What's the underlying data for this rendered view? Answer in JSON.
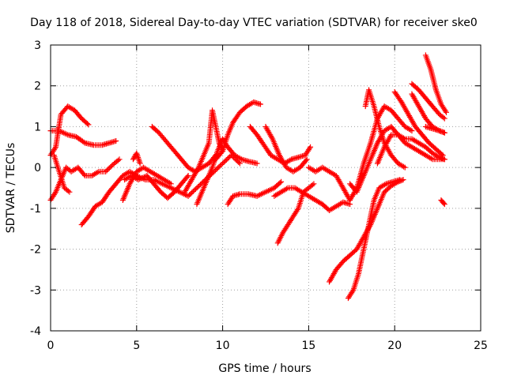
{
  "chart_data": {
    "type": "scatter",
    "title": "Day 118 of 2018, Sidereal Day-to-day VTEC variation (SDTVAR) for receiver ske0",
    "xlabel": "GPS time / hours",
    "ylabel": "SDTVAR / TECUs",
    "xlim": [
      0,
      25
    ],
    "ylim": [
      -4,
      3
    ],
    "xticks": [
      "0",
      "5",
      "10",
      "15",
      "20",
      "25"
    ],
    "yticks": [
      "-4",
      "-3",
      "-2",
      "-1",
      "0",
      "1",
      "2",
      "3"
    ],
    "grid": true,
    "marker": "+",
    "color": "#ff0000",
    "tracks": [
      [
        [
          0.0,
          -0.8
        ],
        [
          0.3,
          -0.6
        ],
        [
          0.6,
          -0.3
        ],
        [
          0.9,
          0.0
        ],
        [
          1.2,
          -0.1
        ],
        [
          1.6,
          0.0
        ],
        [
          2.0,
          -0.2
        ],
        [
          2.4,
          -0.2
        ],
        [
          2.8,
          -0.1
        ],
        [
          3.2,
          -0.1
        ],
        [
          3.7,
          0.1
        ],
        [
          4.0,
          0.2
        ]
      ],
      [
        [
          0.0,
          0.9
        ],
        [
          0.5,
          0.9
        ],
        [
          1.0,
          0.8
        ],
        [
          1.5,
          0.75
        ],
        [
          2.0,
          0.6
        ],
        [
          2.5,
          0.55
        ],
        [
          3.0,
          0.55
        ],
        [
          3.4,
          0.6
        ],
        [
          3.8,
          0.65
        ]
      ],
      [
        [
          0.0,
          0.3
        ],
        [
          0.3,
          0.5
        ],
        [
          0.6,
          1.3
        ],
        [
          1.0,
          1.5
        ],
        [
          1.4,
          1.4
        ],
        [
          1.8,
          1.2
        ],
        [
          2.2,
          1.05
        ]
      ],
      [
        [
          0.2,
          0.3
        ],
        [
          0.5,
          -0.1
        ],
        [
          0.8,
          -0.5
        ],
        [
          1.1,
          -0.6
        ]
      ],
      [
        [
          1.8,
          -1.4
        ],
        [
          2.2,
          -1.2
        ],
        [
          2.6,
          -0.95
        ],
        [
          3.0,
          -0.85
        ],
        [
          3.4,
          -0.6
        ],
        [
          3.8,
          -0.4
        ],
        [
          4.2,
          -0.2
        ],
        [
          4.6,
          -0.1
        ],
        [
          5.0,
          -0.2
        ],
        [
          5.5,
          -0.3
        ],
        [
          6.0,
          -0.3
        ],
        [
          6.5,
          -0.4
        ],
        [
          7.0,
          -0.5
        ],
        [
          7.5,
          -0.6
        ],
        [
          8.0,
          -0.7
        ],
        [
          8.5,
          -0.5
        ],
        [
          9.0,
          -0.3
        ],
        [
          9.5,
          -0.1
        ],
        [
          10.0,
          0.1
        ],
        [
          10.5,
          0.3
        ],
        [
          11.0,
          0.1
        ]
      ],
      [
        [
          4.2,
          -0.8
        ],
        [
          4.6,
          -0.4
        ],
        [
          5.0,
          -0.1
        ],
        [
          5.4,
          0.0
        ],
        [
          5.8,
          -0.1
        ],
        [
          6.2,
          -0.2
        ],
        [
          6.6,
          -0.3
        ],
        [
          7.0,
          -0.4
        ]
      ],
      [
        [
          4.3,
          -0.3
        ],
        [
          4.7,
          -0.2
        ],
        [
          5.1,
          -0.3
        ],
        [
          5.6,
          -0.2
        ],
        [
          6.0,
          -0.4
        ],
        [
          6.4,
          -0.6
        ],
        [
          6.8,
          -0.75
        ],
        [
          7.2,
          -0.6
        ],
        [
          7.6,
          -0.4
        ],
        [
          8.0,
          -0.2
        ]
      ],
      [
        [
          4.8,
          0.2
        ],
        [
          5.0,
          0.35
        ],
        [
          5.2,
          0.1
        ]
      ],
      [
        [
          5.9,
          1.0
        ],
        [
          6.3,
          0.85
        ],
        [
          6.8,
          0.6
        ],
        [
          7.2,
          0.4
        ],
        [
          7.6,
          0.2
        ],
        [
          8.0,
          0.0
        ],
        [
          8.4,
          -0.1
        ],
        [
          8.8,
          0.0
        ],
        [
          9.2,
          0.1
        ],
        [
          9.6,
          0.3
        ]
      ],
      [
        [
          7.8,
          -0.6
        ],
        [
          8.2,
          -0.3
        ],
        [
          8.6,
          0.0
        ],
        [
          8.9,
          0.3
        ],
        [
          9.2,
          0.6
        ],
        [
          9.4,
          1.4
        ],
        [
          9.6,
          1.0
        ],
        [
          9.8,
          0.6
        ],
        [
          10.0,
          0.4
        ]
      ],
      [
        [
          8.5,
          -0.9
        ],
        [
          8.8,
          -0.6
        ],
        [
          9.1,
          -0.3
        ],
        [
          9.4,
          0.0
        ],
        [
          9.7,
          0.4
        ],
        [
          10.0,
          0.7
        ],
        [
          10.3,
          0.5
        ],
        [
          10.7,
          0.3
        ],
        [
          11.1,
          0.2
        ],
        [
          11.5,
          0.15
        ],
        [
          12.0,
          0.1
        ]
      ],
      [
        [
          9.6,
          0.2
        ],
        [
          10.0,
          0.4
        ],
        [
          10.3,
          0.8
        ],
        [
          10.6,
          1.1
        ],
        [
          11.0,
          1.35
        ],
        [
          11.4,
          1.5
        ],
        [
          11.8,
          1.6
        ],
        [
          12.2,
          1.55
        ]
      ],
      [
        [
          10.3,
          -0.9
        ],
        [
          10.6,
          -0.7
        ],
        [
          11.0,
          -0.65
        ],
        [
          11.5,
          -0.65
        ],
        [
          12.0,
          -0.7
        ],
        [
          12.5,
          -0.6
        ],
        [
          13.0,
          -0.5
        ],
        [
          13.4,
          -0.35
        ]
      ],
      [
        [
          11.6,
          1.0
        ],
        [
          12.0,
          0.8
        ],
        [
          12.4,
          0.55
        ],
        [
          12.8,
          0.3
        ],
        [
          13.2,
          0.2
        ],
        [
          13.6,
          0.1
        ],
        [
          14.0,
          0.2
        ],
        [
          14.4,
          0.25
        ],
        [
          14.8,
          0.3
        ],
        [
          15.1,
          0.5
        ]
      ],
      [
        [
          12.5,
          1.0
        ],
        [
          12.9,
          0.7
        ],
        [
          13.3,
          0.3
        ],
        [
          13.7,
          0.0
        ],
        [
          14.1,
          -0.1
        ],
        [
          14.5,
          0.0
        ],
        [
          14.9,
          0.2
        ]
      ],
      [
        [
          13.0,
          -0.7
        ],
        [
          13.4,
          -0.6
        ],
        [
          13.8,
          -0.5
        ],
        [
          14.2,
          -0.5
        ],
        [
          14.6,
          -0.6
        ],
        [
          15.0,
          -0.7
        ],
        [
          15.4,
          -0.8
        ],
        [
          15.8,
          -0.9
        ],
        [
          16.2,
          -1.05
        ],
        [
          16.6,
          -0.95
        ],
        [
          17.0,
          -0.85
        ],
        [
          17.4,
          -0.9
        ]
      ],
      [
        [
          13.2,
          -1.85
        ],
        [
          13.5,
          -1.6
        ],
        [
          13.8,
          -1.4
        ],
        [
          14.1,
          -1.2
        ],
        [
          14.4,
          -1.0
        ],
        [
          14.7,
          -0.6
        ],
        [
          15.0,
          -0.5
        ],
        [
          15.3,
          -0.4
        ]
      ],
      [
        [
          15.0,
          0.0
        ],
        [
          15.4,
          -0.1
        ],
        [
          15.8,
          0.0
        ],
        [
          16.2,
          -0.1
        ],
        [
          16.6,
          -0.2
        ],
        [
          17.0,
          -0.5
        ],
        [
          17.4,
          -0.8
        ],
        [
          17.8,
          -0.5
        ],
        [
          18.2,
          0.1
        ],
        [
          18.6,
          0.6
        ],
        [
          19.0,
          1.2
        ],
        [
          19.4,
          1.5
        ],
        [
          19.8,
          1.4
        ],
        [
          20.2,
          1.2
        ],
        [
          20.6,
          1.0
        ],
        [
          21.0,
          0.9
        ]
      ],
      [
        [
          16.2,
          -2.8
        ],
        [
          16.6,
          -2.5
        ],
        [
          17.0,
          -2.3
        ],
        [
          17.4,
          -2.15
        ],
        [
          17.8,
          -2.0
        ],
        [
          18.2,
          -1.7
        ],
        [
          18.6,
          -1.4
        ],
        [
          19.0,
          -1.0
        ],
        [
          19.4,
          -0.6
        ],
        [
          19.8,
          -0.45
        ],
        [
          20.2,
          -0.35
        ],
        [
          20.5,
          -0.3
        ]
      ],
      [
        [
          17.3,
          -3.2
        ],
        [
          17.6,
          -3.0
        ],
        [
          17.9,
          -2.6
        ],
        [
          18.2,
          -2.0
        ],
        [
          18.5,
          -1.4
        ],
        [
          18.8,
          -0.8
        ],
        [
          19.1,
          -0.5
        ],
        [
          19.5,
          -0.4
        ],
        [
          19.9,
          -0.35
        ],
        [
          20.3,
          -0.3
        ]
      ],
      [
        [
          17.4,
          -0.4
        ],
        [
          17.8,
          -0.6
        ],
        [
          18.2,
          -0.2
        ],
        [
          18.6,
          0.2
        ],
        [
          19.0,
          0.6
        ],
        [
          19.4,
          0.9
        ],
        [
          19.8,
          1.0
        ],
        [
          20.2,
          0.8
        ],
        [
          20.6,
          0.6
        ],
        [
          21.0,
          0.5
        ],
        [
          21.4,
          0.4
        ],
        [
          21.8,
          0.3
        ],
        [
          22.2,
          0.2
        ],
        [
          22.6,
          0.2
        ],
        [
          22.9,
          0.2
        ]
      ],
      [
        [
          18.3,
          1.5
        ],
        [
          18.5,
          1.9
        ],
        [
          18.8,
          1.5
        ],
        [
          19.1,
          1.0
        ],
        [
          19.4,
          0.6
        ],
        [
          19.8,
          0.3
        ],
        [
          20.2,
          0.1
        ],
        [
          20.6,
          0.0
        ]
      ],
      [
        [
          19.0,
          0.1
        ],
        [
          19.4,
          0.5
        ],
        [
          19.8,
          0.8
        ],
        [
          20.2,
          0.8
        ],
        [
          20.6,
          0.7
        ],
        [
          21.0,
          0.7
        ],
        [
          21.4,
          0.6
        ],
        [
          21.8,
          0.5
        ],
        [
          22.2,
          0.35
        ],
        [
          22.6,
          0.25
        ],
        [
          22.9,
          0.2
        ]
      ],
      [
        [
          20.0,
          1.85
        ],
        [
          20.4,
          1.6
        ],
        [
          20.8,
          1.3
        ],
        [
          21.2,
          1.0
        ],
        [
          21.6,
          0.8
        ],
        [
          22.0,
          0.6
        ],
        [
          22.4,
          0.45
        ],
        [
          22.8,
          0.3
        ]
      ],
      [
        [
          21.0,
          1.8
        ],
        [
          21.4,
          1.5
        ],
        [
          21.8,
          1.2
        ],
        [
          22.2,
          1.0
        ],
        [
          22.6,
          0.9
        ],
        [
          22.9,
          0.85
        ]
      ],
      [
        [
          21.0,
          2.05
        ],
        [
          21.4,
          1.9
        ],
        [
          21.8,
          1.7
        ],
        [
          22.2,
          1.5
        ],
        [
          22.6,
          1.3
        ],
        [
          22.9,
          1.2
        ]
      ],
      [
        [
          21.8,
          2.75
        ],
        [
          22.1,
          2.4
        ],
        [
          22.4,
          1.9
        ],
        [
          22.7,
          1.55
        ],
        [
          23.0,
          1.35
        ]
      ],
      [
        [
          21.8,
          1.0
        ],
        [
          22.2,
          0.95
        ],
        [
          22.6,
          0.9
        ],
        [
          22.9,
          0.85
        ]
      ],
      [
        [
          22.7,
          -0.8
        ],
        [
          22.9,
          -0.9
        ]
      ]
    ]
  }
}
